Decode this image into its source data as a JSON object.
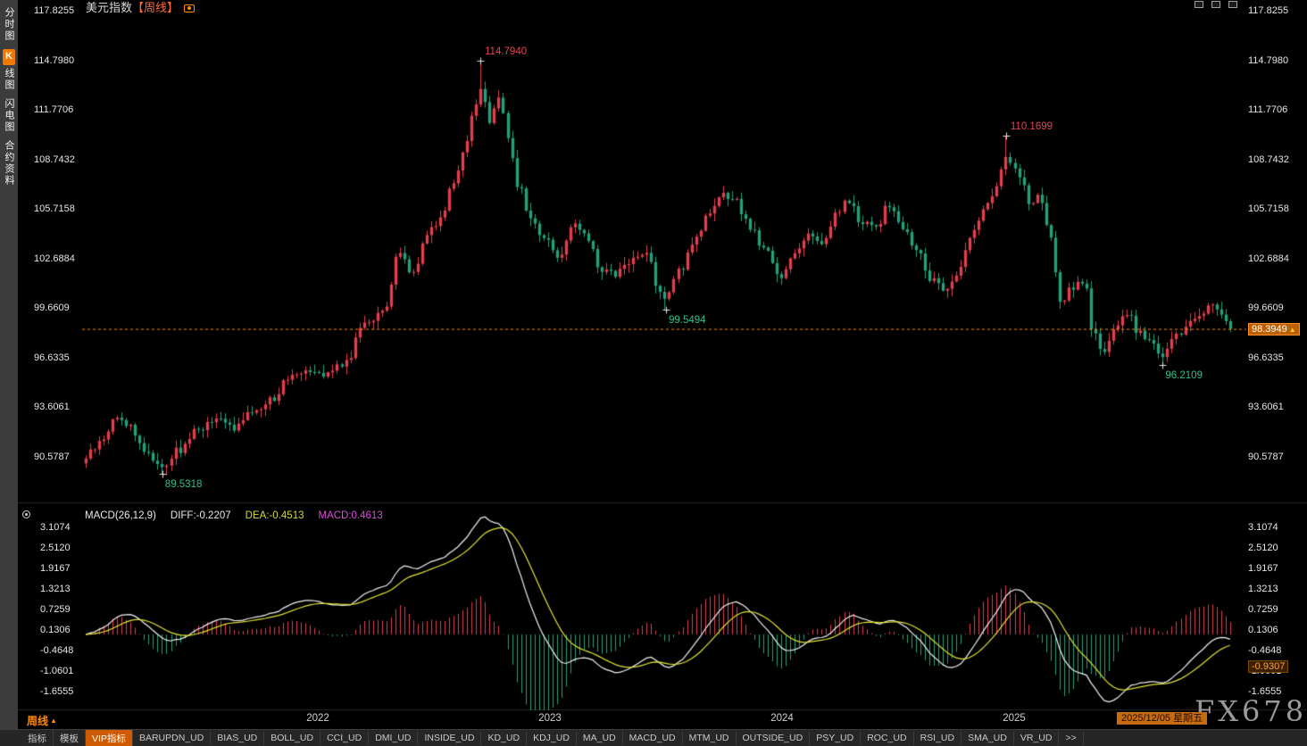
{
  "header": {
    "title_symbol": "美元指数",
    "title_period": "【周线】",
    "toolbar_icons": [
      "camera-icon",
      "window-icon",
      "fullscreen-icon"
    ]
  },
  "sidebar": {
    "items": [
      {
        "label": "分时图",
        "active": false
      },
      {
        "label": "K线图",
        "active": true
      },
      {
        "label": "闪电图",
        "active": false
      },
      {
        "label": "合约资料",
        "active": false
      }
    ]
  },
  "price_panel": {
    "axis_labels": [
      "117.8255",
      "114.7980",
      "111.7706",
      "108.7432",
      "105.7158",
      "102.6884",
      "99.6609",
      "96.6335",
      "93.6061",
      "90.5787"
    ],
    "current_price_tag": "98.3949"
  },
  "macd_panel": {
    "indicator_label": "MACD(26,12,9)",
    "diff_label": "DIFF:-0.2207",
    "dea_label": "DEA:-0.4513",
    "macd_label": "MACD:0.4613",
    "axis_labels": [
      "3.1074",
      "2.5120",
      "1.9167",
      "1.3213",
      "0.7259",
      "0.1306",
      "-0.4648",
      "-1.0601",
      "-1.6555"
    ],
    "value_tag": "-0.9307"
  },
  "timeline": {
    "period_label": "周线",
    "year_labels": [
      {
        "text": "2022",
        "t": 2022
      },
      {
        "text": "2023",
        "t": 2023
      },
      {
        "text": "2024",
        "t": 2024
      },
      {
        "text": "2025",
        "t": 2025
      }
    ],
    "date_tag": "2025/12/05 星期五"
  },
  "bottom_tabs": [
    "指标",
    "模板",
    "VIP指标",
    "BARUPDN_UD",
    "BIAS_UD",
    "BOLL_UD",
    "CCI_UD",
    "DMI_UD",
    "INSIDE_UD",
    "KD_UD",
    "KDJ_UD",
    "MA_UD",
    "MACD_UD",
    "MTM_UD",
    "OUTSIDE_UD",
    "PSY_UD",
    "ROC_UD",
    "RSI_UD",
    "SMA_UD",
    "VR_UD",
    ">>"
  ],
  "bottom_tabs_active": "VIP指标",
  "watermark": "FX678",
  "colors": {
    "up": "#e23f4d",
    "down": "#23a17b",
    "diff_line": "#f2f2f2",
    "dea_line": "#e3e330",
    "macd_value_text": "#d84fd8",
    "accent_orange": "#ff9000",
    "annotation_high": "#e8404e",
    "annotation_low": "#2fc08d",
    "price_tag_bg": "#bf6000"
  },
  "chart_data": {
    "type": "candlestick",
    "symbol": "美元指数 (US Dollar Index)",
    "period": "weekly",
    "x_range": [
      2021.0,
      2025.93
    ],
    "price_axis_range": [
      90.5787,
      117.8255
    ],
    "macd_axis_range": [
      -1.6555,
      3.1074
    ],
    "last_values": {
      "close": 98.3949,
      "diff": -0.2207,
      "dea": -0.4513,
      "macd": 0.4613
    },
    "key_extremes": [
      {
        "t": 2021.33,
        "price": 89.5318,
        "kind": "low",
        "label": "89.5318"
      },
      {
        "t": 2022.7,
        "price": 114.794,
        "kind": "high",
        "label": "114.7940"
      },
      {
        "t": 2023.5,
        "price": 99.5494,
        "kind": "low",
        "label": "99.5494"
      },
      {
        "t": 2024.965,
        "price": 110.1699,
        "kind": "high",
        "label": "110.1699"
      },
      {
        "t": 2025.64,
        "price": 96.2109,
        "kind": "low",
        "label": "96.2109"
      }
    ],
    "close_anchors": [
      [
        2021.0,
        90.6
      ],
      [
        2021.06,
        91.4
      ],
      [
        2021.13,
        93.0
      ],
      [
        2021.19,
        92.5
      ],
      [
        2021.25,
        91.0
      ],
      [
        2021.33,
        90.0
      ],
      [
        2021.4,
        91.0
      ],
      [
        2021.48,
        92.3
      ],
      [
        2021.56,
        92.8
      ],
      [
        2021.65,
        92.4
      ],
      [
        2021.73,
        93.5
      ],
      [
        2021.81,
        94.2
      ],
      [
        2021.88,
        95.6
      ],
      [
        2021.96,
        96.0
      ],
      [
        2022.04,
        95.7
      ],
      [
        2022.12,
        96.4
      ],
      [
        2022.2,
        98.9
      ],
      [
        2022.28,
        99.3
      ],
      [
        2022.35,
        103.1
      ],
      [
        2022.41,
        101.8
      ],
      [
        2022.47,
        104.3
      ],
      [
        2022.53,
        105.2
      ],
      [
        2022.58,
        107.3
      ],
      [
        2022.63,
        109.3
      ],
      [
        2022.67,
        111.5
      ],
      [
        2022.7,
        112.9
      ],
      [
        2022.74,
        111.2
      ],
      [
        2022.78,
        112.5
      ],
      [
        2022.82,
        110.1
      ],
      [
        2022.86,
        107.2
      ],
      [
        2022.91,
        105.2
      ],
      [
        2022.97,
        104.0
      ],
      [
        2023.04,
        102.9
      ],
      [
        2023.1,
        104.7
      ],
      [
        2023.16,
        103.9
      ],
      [
        2023.22,
        102.0
      ],
      [
        2023.28,
        101.7
      ],
      [
        2023.35,
        102.6
      ],
      [
        2023.42,
        103.0
      ],
      [
        2023.47,
        100.8
      ],
      [
        2023.5,
        100.2
      ],
      [
        2023.56,
        102.0
      ],
      [
        2023.62,
        103.9
      ],
      [
        2023.68,
        105.2
      ],
      [
        2023.74,
        106.5
      ],
      [
        2023.8,
        106.1
      ],
      [
        2023.86,
        104.6
      ],
      [
        2023.93,
        103.1
      ],
      [
        2023.99,
        101.5
      ],
      [
        2024.05,
        103.0
      ],
      [
        2024.11,
        104.2
      ],
      [
        2024.17,
        103.6
      ],
      [
        2024.23,
        105.3
      ],
      [
        2024.28,
        106.2
      ],
      [
        2024.34,
        104.9
      ],
      [
        2024.4,
        104.6
      ],
      [
        2024.46,
        106.0
      ],
      [
        2024.52,
        104.5
      ],
      [
        2024.58,
        103.1
      ],
      [
        2024.64,
        101.5
      ],
      [
        2024.7,
        100.7
      ],
      [
        2024.76,
        101.9
      ],
      [
        2024.82,
        104.4
      ],
      [
        2024.88,
        106.0
      ],
      [
        2024.93,
        107.3
      ],
      [
        2024.965,
        109.0
      ],
      [
        2025.02,
        107.6
      ],
      [
        2025.07,
        105.8
      ],
      [
        2025.11,
        106.5
      ],
      [
        2025.15,
        103.9
      ],
      [
        2025.2,
        100.2
      ],
      [
        2025.26,
        101.0
      ],
      [
        2025.3,
        101.4
      ],
      [
        2025.34,
        98.1
      ],
      [
        2025.38,
        97.0
      ],
      [
        2025.44,
        98.7
      ],
      [
        2025.49,
        99.2
      ],
      [
        2025.54,
        98.1
      ],
      [
        2025.59,
        97.6
      ],
      [
        2025.64,
        96.9
      ],
      [
        2025.7,
        97.9
      ],
      [
        2025.76,
        98.8
      ],
      [
        2025.81,
        99.5
      ],
      [
        2025.85,
        99.9
      ],
      [
        2025.89,
        99.3
      ],
      [
        2025.93,
        98.3949
      ]
    ]
  }
}
